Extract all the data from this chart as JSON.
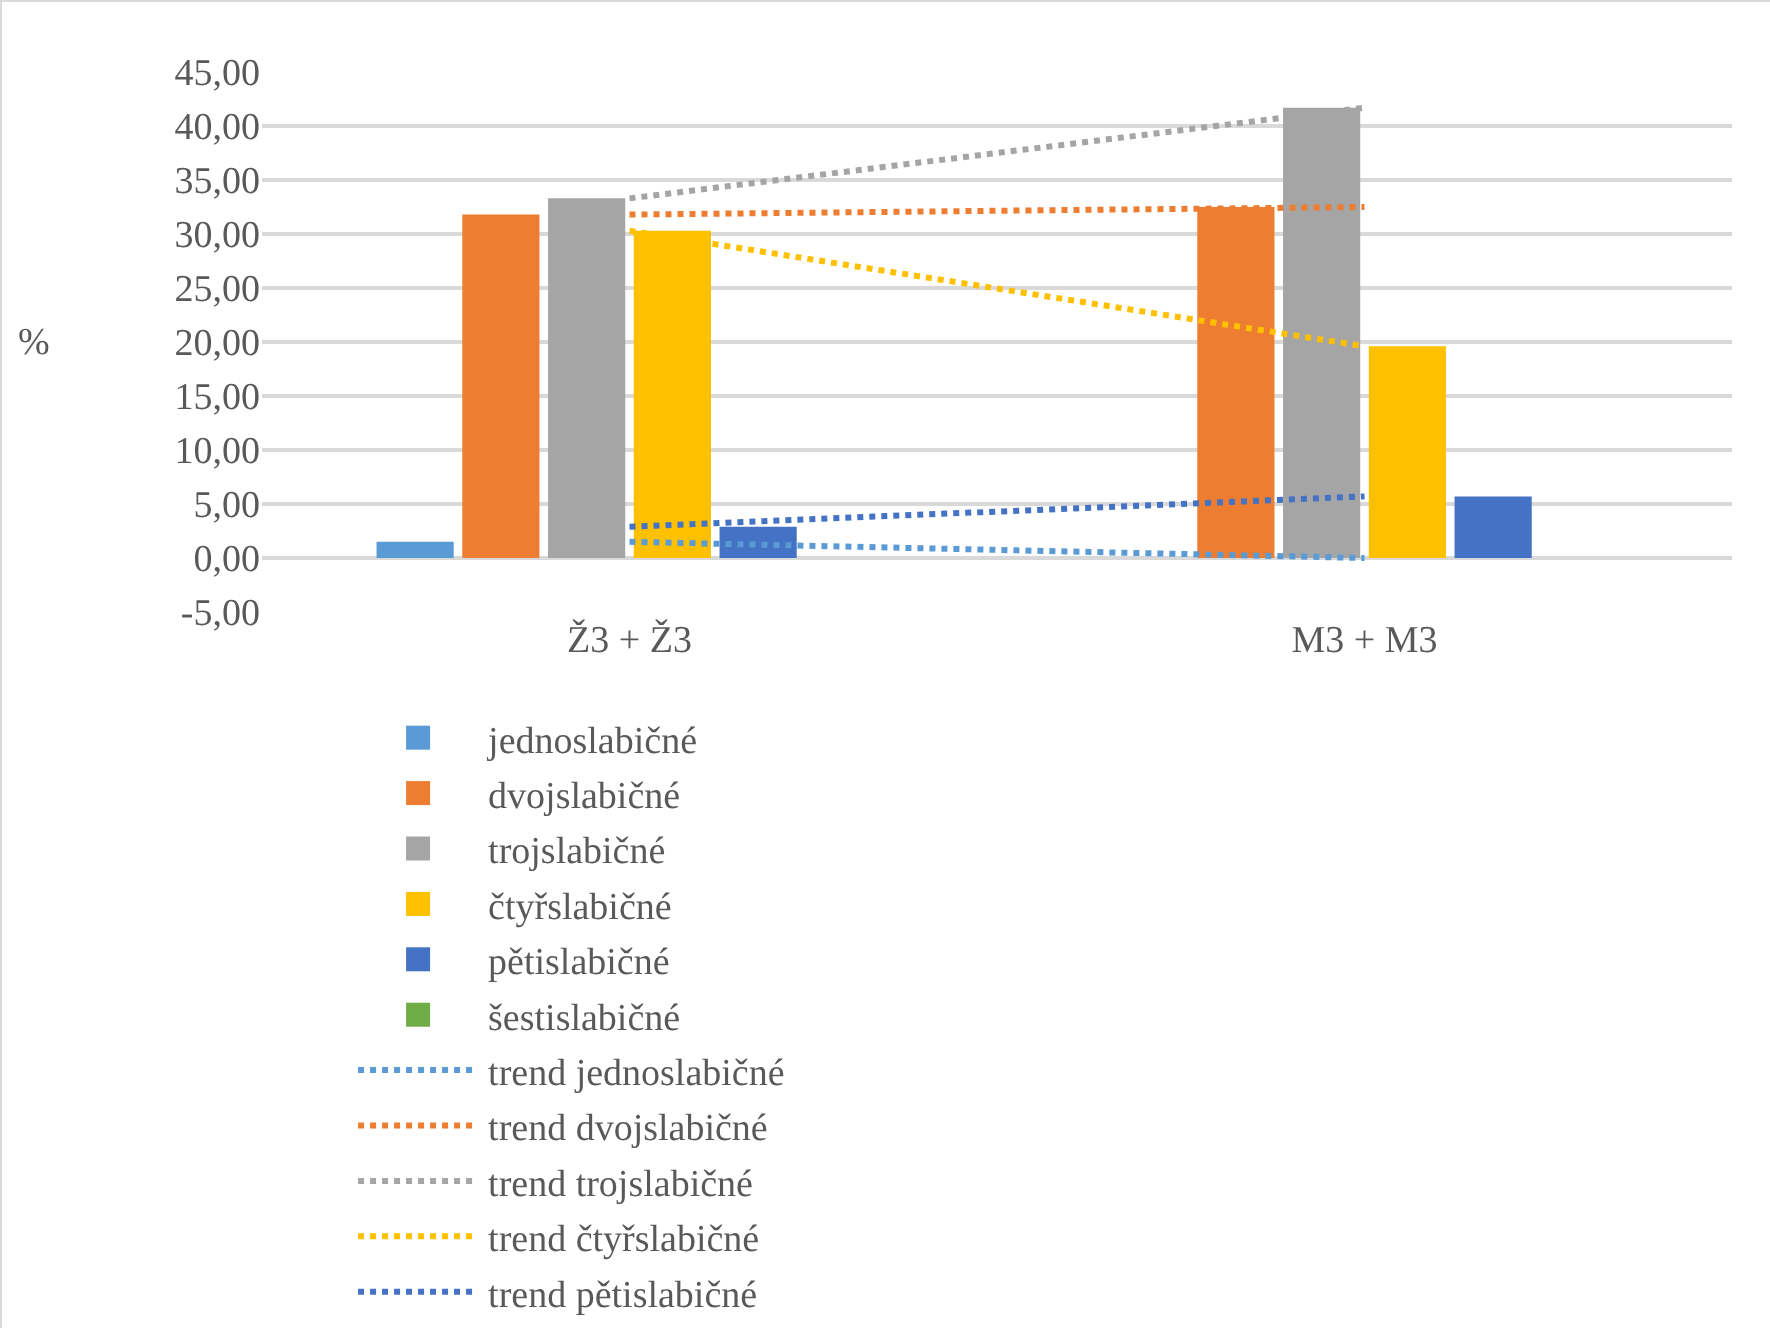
{
  "chart_data": {
    "type": "bar",
    "ylabel": "%",
    "categories": [
      "Ž3 + Ž3",
      "M3 + M3"
    ],
    "series": [
      {
        "name": "jednoslabičné",
        "color": "#5b9bd5",
        "values": [
          1.5,
          0
        ]
      },
      {
        "name": "dvojslabičné",
        "color": "#ed7d31",
        "values": [
          31.8,
          32.5
        ]
      },
      {
        "name": "trojslabičné",
        "color": "#a5a5a5",
        "values": [
          33.3,
          41.7
        ]
      },
      {
        "name": "čtyřslabičné",
        "color": "#ffc000",
        "values": [
          30.3,
          19.6
        ]
      },
      {
        "name": "pětislabičné",
        "color": "#4472c4",
        "values": [
          2.9,
          5.7
        ]
      },
      {
        "name": "šestislabičné",
        "color": "#70ad47",
        "values": [
          0,
          0
        ]
      },
      {
        "name": "trend jednoslabičné",
        "type": "line",
        "line_style": "dotted",
        "color": "#5b9bd5",
        "x": [
          "Ž3 + Ž3",
          "M3 + M3"
        ],
        "values": [
          1.5,
          0
        ]
      },
      {
        "name": "trend dvojslabičné",
        "type": "line",
        "line_style": "dotted",
        "color": "#ed7d31",
        "x": [
          "Ž3 + Ž3",
          "M3 + M3"
        ],
        "values": [
          31.8,
          32.5
        ]
      },
      {
        "name": "trend trojslabičné",
        "type": "line",
        "line_style": "dotted",
        "color": "#a5a5a5",
        "x": [
          "Ž3 + Ž3",
          "M3 + M3"
        ],
        "values": [
          33.3,
          41.7
        ]
      },
      {
        "name": "trend čtyřslabičné",
        "type": "line",
        "line_style": "dotted",
        "color": "#ffc000",
        "x": [
          "Ž3 + Ž3",
          "M3 + M3"
        ],
        "values": [
          30.3,
          19.6
        ]
      },
      {
        "name": "trend pětislabičné",
        "type": "line",
        "line_style": "dotted",
        "color": "#4472c4",
        "x": [
          "Ž3 + Ž3",
          "M3 + M3"
        ],
        "values": [
          2.9,
          5.7
        ]
      }
    ],
    "ylim": [
      -5,
      45
    ],
    "yticks": [
      {
        "value": -5,
        "label": "-5,00"
      },
      {
        "value": 0,
        "label": "0,00"
      },
      {
        "value": 5,
        "label": "5,00"
      },
      {
        "value": 10,
        "label": "10,00"
      },
      {
        "value": 15,
        "label": "15,00"
      },
      {
        "value": 20,
        "label": "20,00"
      },
      {
        "value": 25,
        "label": "25,00"
      },
      {
        "value": 30,
        "label": "30,00"
      },
      {
        "value": 35,
        "label": "35,00"
      },
      {
        "value": 40,
        "label": "40,00"
      },
      {
        "value": 45,
        "label": "45,00"
      }
    ],
    "grid": "y",
    "legend": "bottom",
    "marker": "none"
  }
}
